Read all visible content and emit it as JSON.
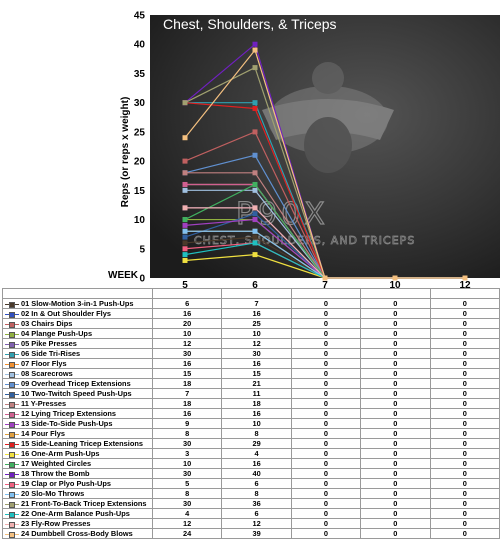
{
  "chart_data": {
    "type": "line",
    "title": "Chest, Shoulders, & Triceps",
    "ylabel": "Reps (or reps x weight)",
    "xlabel": "WEEK",
    "categories": [
      "5",
      "6",
      "7",
      "10",
      "12"
    ],
    "ylim": [
      0,
      45
    ],
    "yticks": [
      0,
      5,
      10,
      15,
      20,
      25,
      30,
      35,
      40,
      45
    ],
    "watermark": {
      "logo": "P90X",
      "subtitle": "CHEST, SHOULDERS, AND TRICEPS"
    },
    "series": [
      {
        "name": "01 Slow-Motion 3-in-1 Push-Ups",
        "values": [
          6,
          7,
          0,
          0,
          0
        ],
        "color": "#4a3a2a"
      },
      {
        "name": "02 In & Out Shoulder Flys",
        "values": [
          16,
          16,
          0,
          0,
          0
        ],
        "color": "#3050c0"
      },
      {
        "name": "03 Chairs Dips",
        "values": [
          20,
          25,
          0,
          0,
          0
        ],
        "color": "#c06060"
      },
      {
        "name": "04 Plange Push-Ups",
        "values": [
          10,
          10,
          0,
          0,
          0
        ],
        "color": "#90b040"
      },
      {
        "name": "05 Pike Presses",
        "values": [
          12,
          12,
          0,
          0,
          0
        ],
        "color": "#8060b0"
      },
      {
        "name": "06 Side Tri-Rises",
        "values": [
          30,
          30,
          0,
          0,
          0
        ],
        "color": "#30a0b0"
      },
      {
        "name": "07 Floor Flys",
        "values": [
          16,
          16,
          0,
          0,
          0
        ],
        "color": "#f09030"
      },
      {
        "name": "08 Scarecrows",
        "values": [
          15,
          15,
          0,
          0,
          0
        ],
        "color": "#a0c0e0"
      },
      {
        "name": "09 Overhead Tricep Extensions",
        "values": [
          18,
          21,
          0,
          0,
          0
        ],
        "color": "#6090d0"
      },
      {
        "name": "10 Two-Twitch Speed Push-Ups",
        "values": [
          7,
          11,
          0,
          0,
          0
        ],
        "color": "#3060a0"
      },
      {
        "name": "11 Y-Presses",
        "values": [
          18,
          18,
          0,
          0,
          0
        ],
        "color": "#c08080"
      },
      {
        "name": "12 Lying Tricep Extensions",
        "values": [
          16,
          16,
          0,
          0,
          0
        ],
        "color": "#d06090"
      },
      {
        "name": "13 Side-To-Side Push-Ups",
        "values": [
          9,
          10,
          0,
          0,
          0
        ],
        "color": "#a040c0"
      },
      {
        "name": "14 Pour Flys",
        "values": [
          8,
          8,
          0,
          0,
          0
        ],
        "color": "#e0a040"
      },
      {
        "name": "15 Side-Leaning Tricep Extensions",
        "values": [
          30,
          29,
          0,
          0,
          0
        ],
        "color": "#e02020"
      },
      {
        "name": "16 One-Arm Push-Ups",
        "values": [
          3,
          4,
          0,
          0,
          0
        ],
        "color": "#f0e040"
      },
      {
        "name": "17 Weighted Circles",
        "values": [
          10,
          16,
          0,
          0,
          0
        ],
        "color": "#40b060"
      },
      {
        "name": "18 Throw the Bomb",
        "values": [
          30,
          40,
          0,
          0,
          0
        ],
        "color": "#7020c0"
      },
      {
        "name": "19 Clap or Plyo Push-Ups",
        "values": [
          5,
          6,
          0,
          0,
          0
        ],
        "color": "#f06080"
      },
      {
        "name": "20 Slo-Mo Throws",
        "values": [
          8,
          8,
          0,
          0,
          0
        ],
        "color": "#80c0f0"
      },
      {
        "name": "21 Front-To-Back Tricep Extensions",
        "values": [
          30,
          36,
          0,
          0,
          0
        ],
        "color": "#a0a070"
      },
      {
        "name": "22 One-Arm Balance Push-Ups",
        "values": [
          4,
          6,
          0,
          0,
          0
        ],
        "color": "#20c0c0"
      },
      {
        "name": "23 Fly-Row Presses",
        "values": [
          12,
          12,
          0,
          0,
          0
        ],
        "color": "#f0b0b0"
      },
      {
        "name": "24 Dumbbell Cross-Body Blows",
        "values": [
          24,
          39,
          0,
          0,
          0
        ],
        "color": "#f4c080"
      }
    ]
  }
}
